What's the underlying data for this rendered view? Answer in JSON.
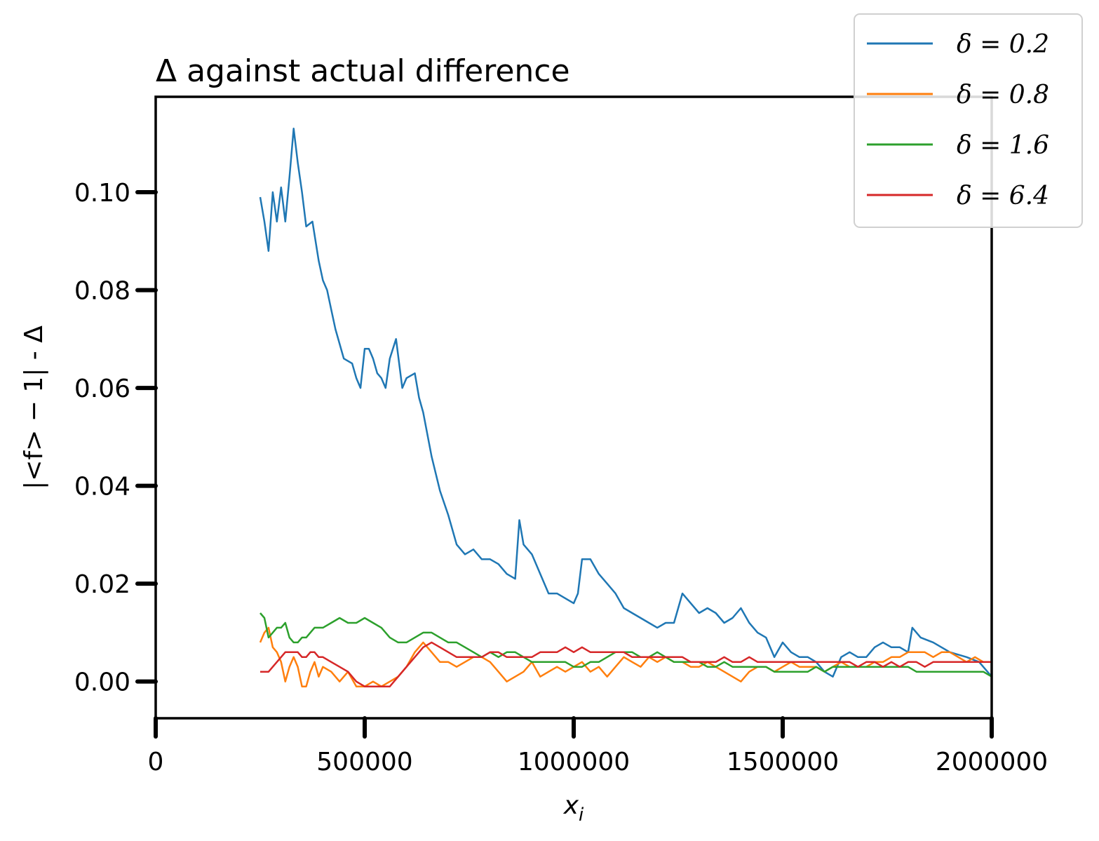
{
  "chart_data": {
    "type": "line",
    "title": "Δ against actual difference",
    "xlabel": "x_i",
    "ylabel": "|<f> − 1| - Δ",
    "xlim": [
      0,
      2000000
    ],
    "ylim": [
      -0.0075,
      0.1195
    ],
    "xticks": [
      0,
      500000,
      1000000,
      1500000,
      2000000
    ],
    "xtick_labels": [
      "0",
      "500000",
      "1000000",
      "1500000",
      "2000000"
    ],
    "yticks": [
      0.0,
      0.02,
      0.04,
      0.06,
      0.08,
      0.1
    ],
    "ytick_labels": [
      "0.00",
      "0.02",
      "0.04",
      "0.06",
      "0.08",
      "0.10"
    ],
    "legend_position": "top-right",
    "grid": false,
    "series": [
      {
        "name": "δ = 0.2",
        "color": "#1f77b4",
        "x": [
          250000,
          260000,
          270000,
          280000,
          290000,
          300000,
          310000,
          320000,
          330000,
          340000,
          350000,
          360000,
          375000,
          390000,
          400000,
          410000,
          420000,
          430000,
          450000,
          470000,
          480000,
          490000,
          500000,
          510000,
          520000,
          530000,
          540000,
          550000,
          560000,
          575000,
          590000,
          600000,
          620000,
          630000,
          640000,
          660000,
          680000,
          700000,
          720000,
          740000,
          760000,
          780000,
          800000,
          820000,
          840000,
          860000,
          870000,
          880000,
          900000,
          920000,
          940000,
          960000,
          980000,
          1000000,
          1010000,
          1020000,
          1040000,
          1060000,
          1080000,
          1100000,
          1120000,
          1140000,
          1160000,
          1180000,
          1200000,
          1220000,
          1240000,
          1260000,
          1280000,
          1300000,
          1320000,
          1340000,
          1360000,
          1380000,
          1400000,
          1420000,
          1440000,
          1460000,
          1480000,
          1500000,
          1520000,
          1540000,
          1560000,
          1580000,
          1600000,
          1620000,
          1640000,
          1660000,
          1680000,
          1700000,
          1720000,
          1740000,
          1760000,
          1780000,
          1800000,
          1810000,
          1830000,
          1860000,
          1900000,
          1940000,
          1970000,
          2000000
        ],
        "y": [
          0.099,
          0.094,
          0.088,
          0.1,
          0.094,
          0.101,
          0.094,
          0.103,
          0.113,
          0.106,
          0.1,
          0.093,
          0.094,
          0.086,
          0.082,
          0.08,
          0.076,
          0.072,
          0.066,
          0.065,
          0.062,
          0.06,
          0.068,
          0.068,
          0.066,
          0.063,
          0.062,
          0.06,
          0.066,
          0.07,
          0.06,
          0.062,
          0.063,
          0.058,
          0.055,
          0.046,
          0.039,
          0.034,
          0.028,
          0.026,
          0.027,
          0.025,
          0.025,
          0.024,
          0.022,
          0.021,
          0.033,
          0.028,
          0.026,
          0.022,
          0.018,
          0.018,
          0.017,
          0.016,
          0.018,
          0.025,
          0.025,
          0.022,
          0.02,
          0.018,
          0.015,
          0.014,
          0.013,
          0.012,
          0.011,
          0.012,
          0.012,
          0.018,
          0.016,
          0.014,
          0.015,
          0.014,
          0.012,
          0.013,
          0.015,
          0.012,
          0.01,
          0.009,
          0.005,
          0.008,
          0.006,
          0.005,
          0.005,
          0.004,
          0.002,
          0.001,
          0.005,
          0.006,
          0.005,
          0.005,
          0.007,
          0.008,
          0.007,
          0.007,
          0.006,
          0.011,
          0.009,
          0.008,
          0.006,
          0.005,
          0.004,
          0.001
        ]
      },
      {
        "name": "δ = 0.8",
        "color": "#ff7f0e",
        "x": [
          250000,
          260000,
          270000,
          280000,
          290000,
          300000,
          310000,
          320000,
          330000,
          340000,
          350000,
          360000,
          370000,
          380000,
          390000,
          400000,
          420000,
          440000,
          460000,
          480000,
          500000,
          520000,
          540000,
          560000,
          580000,
          600000,
          620000,
          640000,
          660000,
          680000,
          700000,
          720000,
          740000,
          760000,
          780000,
          800000,
          820000,
          840000,
          860000,
          880000,
          900000,
          920000,
          940000,
          960000,
          980000,
          1000000,
          1020000,
          1040000,
          1060000,
          1080000,
          1100000,
          1120000,
          1140000,
          1160000,
          1180000,
          1200000,
          1220000,
          1240000,
          1260000,
          1280000,
          1300000,
          1320000,
          1340000,
          1360000,
          1380000,
          1400000,
          1420000,
          1440000,
          1460000,
          1480000,
          1500000,
          1520000,
          1540000,
          1560000,
          1580000,
          1600000,
          1620000,
          1640000,
          1660000,
          1680000,
          1700000,
          1720000,
          1740000,
          1760000,
          1780000,
          1800000,
          1820000,
          1840000,
          1860000,
          1880000,
          1900000,
          1920000,
          1940000,
          1960000,
          1980000,
          2000000
        ],
        "y": [
          0.008,
          0.01,
          0.011,
          0.007,
          0.006,
          0.004,
          0.0,
          0.003,
          0.005,
          0.003,
          -0.001,
          -0.001,
          0.002,
          0.004,
          0.001,
          0.003,
          0.002,
          0.0,
          0.002,
          -0.001,
          -0.001,
          0.0,
          -0.001,
          0.0,
          0.001,
          0.003,
          0.006,
          0.008,
          0.006,
          0.004,
          0.004,
          0.003,
          0.004,
          0.005,
          0.005,
          0.004,
          0.002,
          0.0,
          0.001,
          0.002,
          0.004,
          0.001,
          0.002,
          0.003,
          0.002,
          0.003,
          0.004,
          0.002,
          0.003,
          0.001,
          0.003,
          0.005,
          0.004,
          0.003,
          0.005,
          0.004,
          0.005,
          0.004,
          0.004,
          0.003,
          0.003,
          0.004,
          0.003,
          0.002,
          0.001,
          0.0,
          0.002,
          0.003,
          0.003,
          0.002,
          0.003,
          0.004,
          0.003,
          0.003,
          0.003,
          0.002,
          0.003,
          0.004,
          0.003,
          0.003,
          0.003,
          0.004,
          0.004,
          0.005,
          0.005,
          0.006,
          0.006,
          0.006,
          0.005,
          0.006,
          0.006,
          0.005,
          0.004,
          0.005,
          0.004,
          0.004
        ]
      },
      {
        "name": "δ = 1.6",
        "color": "#2ca02c",
        "x": [
          250000,
          260000,
          270000,
          280000,
          290000,
          300000,
          310000,
          320000,
          330000,
          340000,
          350000,
          360000,
          370000,
          380000,
          400000,
          420000,
          440000,
          460000,
          480000,
          500000,
          520000,
          540000,
          560000,
          580000,
          600000,
          620000,
          640000,
          660000,
          680000,
          700000,
          720000,
          740000,
          760000,
          780000,
          800000,
          820000,
          840000,
          860000,
          880000,
          900000,
          920000,
          940000,
          960000,
          980000,
          1000000,
          1020000,
          1040000,
          1060000,
          1080000,
          1100000,
          1120000,
          1140000,
          1160000,
          1180000,
          1200000,
          1220000,
          1240000,
          1260000,
          1280000,
          1300000,
          1320000,
          1340000,
          1360000,
          1380000,
          1400000,
          1420000,
          1440000,
          1460000,
          1480000,
          1500000,
          1520000,
          1540000,
          1560000,
          1580000,
          1600000,
          1620000,
          1640000,
          1660000,
          1680000,
          1700000,
          1720000,
          1740000,
          1760000,
          1780000,
          1800000,
          1820000,
          1840000,
          1860000,
          1880000,
          1900000,
          1920000,
          1940000,
          1960000,
          1980000,
          2000000
        ],
        "y": [
          0.014,
          0.013,
          0.009,
          0.01,
          0.011,
          0.011,
          0.012,
          0.009,
          0.008,
          0.008,
          0.009,
          0.009,
          0.01,
          0.011,
          0.011,
          0.012,
          0.013,
          0.012,
          0.012,
          0.013,
          0.012,
          0.011,
          0.009,
          0.008,
          0.008,
          0.009,
          0.01,
          0.01,
          0.009,
          0.008,
          0.008,
          0.007,
          0.006,
          0.005,
          0.006,
          0.005,
          0.006,
          0.006,
          0.005,
          0.004,
          0.004,
          0.004,
          0.004,
          0.004,
          0.003,
          0.003,
          0.004,
          0.004,
          0.005,
          0.006,
          0.006,
          0.006,
          0.005,
          0.005,
          0.006,
          0.005,
          0.004,
          0.004,
          0.004,
          0.004,
          0.003,
          0.003,
          0.004,
          0.003,
          0.003,
          0.003,
          0.003,
          0.003,
          0.002,
          0.002,
          0.002,
          0.002,
          0.002,
          0.003,
          0.002,
          0.003,
          0.003,
          0.003,
          0.003,
          0.003,
          0.003,
          0.003,
          0.003,
          0.003,
          0.003,
          0.002,
          0.002,
          0.002,
          0.002,
          0.002,
          0.002,
          0.002,
          0.002,
          0.002,
          0.001
        ]
      },
      {
        "name": "δ = 6.4",
        "color": "#d62728",
        "x": [
          250000,
          260000,
          270000,
          280000,
          290000,
          300000,
          310000,
          320000,
          330000,
          340000,
          350000,
          360000,
          370000,
          380000,
          390000,
          400000,
          420000,
          440000,
          460000,
          480000,
          500000,
          520000,
          540000,
          560000,
          580000,
          600000,
          620000,
          640000,
          660000,
          680000,
          700000,
          720000,
          740000,
          760000,
          780000,
          800000,
          820000,
          840000,
          860000,
          880000,
          900000,
          920000,
          940000,
          960000,
          980000,
          1000000,
          1020000,
          1040000,
          1060000,
          1080000,
          1100000,
          1120000,
          1140000,
          1160000,
          1180000,
          1200000,
          1220000,
          1240000,
          1260000,
          1280000,
          1300000,
          1320000,
          1340000,
          1360000,
          1380000,
          1400000,
          1420000,
          1440000,
          1460000,
          1480000,
          1500000,
          1520000,
          1540000,
          1560000,
          1580000,
          1600000,
          1620000,
          1640000,
          1660000,
          1680000,
          1700000,
          1720000,
          1740000,
          1760000,
          1780000,
          1800000,
          1820000,
          1840000,
          1860000,
          1880000,
          1900000,
          1920000,
          1940000,
          1960000,
          1980000,
          2000000
        ],
        "y": [
          0.002,
          0.002,
          0.002,
          0.003,
          0.004,
          0.005,
          0.006,
          0.006,
          0.006,
          0.006,
          0.005,
          0.005,
          0.006,
          0.006,
          0.005,
          0.005,
          0.004,
          0.003,
          0.002,
          0.0,
          -0.001,
          -0.001,
          -0.001,
          -0.001,
          0.001,
          0.003,
          0.005,
          0.007,
          0.008,
          0.007,
          0.006,
          0.005,
          0.005,
          0.005,
          0.005,
          0.006,
          0.006,
          0.005,
          0.005,
          0.005,
          0.005,
          0.006,
          0.006,
          0.006,
          0.007,
          0.006,
          0.007,
          0.006,
          0.006,
          0.006,
          0.006,
          0.006,
          0.005,
          0.005,
          0.005,
          0.005,
          0.005,
          0.005,
          0.005,
          0.004,
          0.004,
          0.004,
          0.004,
          0.005,
          0.004,
          0.004,
          0.005,
          0.004,
          0.004,
          0.004,
          0.004,
          0.004,
          0.004,
          0.004,
          0.004,
          0.004,
          0.004,
          0.004,
          0.004,
          0.003,
          0.004,
          0.004,
          0.003,
          0.004,
          0.003,
          0.004,
          0.004,
          0.003,
          0.004,
          0.004,
          0.004,
          0.004,
          0.004,
          0.004,
          0.004,
          0.004
        ]
      }
    ]
  }
}
